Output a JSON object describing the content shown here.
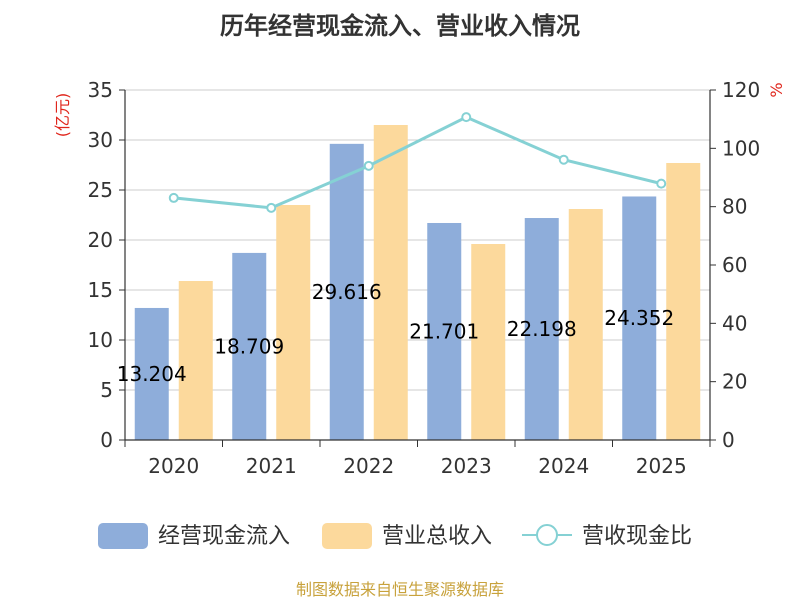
{
  "chart_data": {
    "type": "bar",
    "title": "历年经营现金流入、营业收入情况",
    "categories": [
      "2020",
      "2021",
      "2022",
      "2023",
      "2024",
      "2025"
    ],
    "series": [
      {
        "name": "经营现金流入",
        "type": "bar",
        "axis": "left",
        "color": "#8eadda",
        "values": [
          13.204,
          18.709,
          29.616,
          21.701,
          22.198,
          24.352
        ],
        "labels": [
          "13.204",
          "18.709",
          "29.616",
          "21.701",
          "22.198",
          "24.352"
        ]
      },
      {
        "name": "营业总收入",
        "type": "bar",
        "axis": "left",
        "color": "#fcd99c",
        "values": [
          15.9,
          23.5,
          31.5,
          19.6,
          23.1,
          27.7
        ]
      },
      {
        "name": "营收现金比",
        "type": "line",
        "axis": "right",
        "color": "#85d1d4",
        "values": [
          83.0,
          79.6,
          94.0,
          110.7,
          96.1,
          87.9
        ]
      }
    ],
    "y_left": {
      "unit": "(亿元)",
      "min": 0,
      "max": 35,
      "ticks": [
        "0",
        "5",
        "10",
        "15",
        "20",
        "25",
        "30",
        "35"
      ]
    },
    "y_right": {
      "unit": "%",
      "min": 0,
      "max": 120,
      "ticks": [
        "0",
        "20",
        "40",
        "60",
        "80",
        "100",
        "120"
      ]
    },
    "grid": true,
    "legend_position": "bottom"
  },
  "source": "制图数据来自恒生聚源数据库"
}
